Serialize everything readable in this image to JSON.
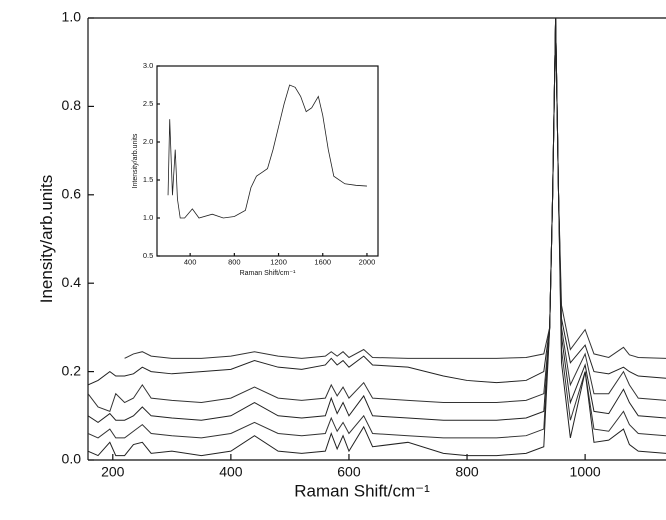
{
  "chart_data": [
    {
      "type": "line",
      "xlabel": "Raman Shift/cm⁻¹",
      "ylabel": "Inensity/arb.units",
      "xlim": [
        158,
        1137
      ],
      "ylim": [
        0,
        1.0
      ],
      "xticks": [
        200,
        400,
        600,
        800,
        1000
      ],
      "yticks": [
        {
          "value": 0,
          "label": "0.0"
        },
        0.2,
        0.4,
        0.6,
        0.8,
        {
          "value": 1,
          "label": "1.0"
        }
      ],
      "x": [
        158,
        175,
        195,
        205,
        220,
        235,
        250,
        265,
        300,
        350,
        400,
        440,
        480,
        520,
        560,
        570,
        580,
        590,
        600,
        625,
        640,
        700,
        760,
        800,
        850,
        900,
        930,
        940,
        945,
        950,
        955,
        960,
        975,
        1000,
        1015,
        1040,
        1065,
        1075,
        1090,
        1137
      ],
      "series": [
        {
          "color": "#333333",
          "values": [
            null,
            null,
            null,
            null,
            0.23,
            0.24,
            0.245,
            0.235,
            0.23,
            0.23,
            0.235,
            0.245,
            0.235,
            0.23,
            0.235,
            0.245,
            0.235,
            0.245,
            0.232,
            0.25,
            0.232,
            0.23,
            0.23,
            0.23,
            0.23,
            0.232,
            0.24,
            0.3,
            0.6,
            1.0,
            0.6,
            0.35,
            0.25,
            0.295,
            0.24,
            0.232,
            0.255,
            0.238,
            0.232,
            0.23
          ]
        },
        {
          "color": "#222222",
          "values": [
            0.17,
            0.18,
            0.2,
            0.19,
            0.19,
            0.195,
            0.21,
            0.2,
            0.195,
            0.2,
            0.205,
            0.225,
            0.21,
            0.205,
            0.215,
            0.23,
            0.215,
            0.225,
            0.21,
            0.235,
            0.215,
            0.21,
            0.19,
            0.18,
            0.175,
            0.18,
            0.2,
            0.3,
            0.6,
            1.0,
            0.6,
            0.32,
            0.22,
            0.26,
            0.2,
            0.195,
            0.21,
            0.2,
            0.19,
            0.185
          ]
        },
        {
          "color": "#333333",
          "values": [
            0.15,
            0.12,
            0.11,
            0.15,
            0.13,
            0.14,
            0.17,
            0.14,
            0.135,
            0.13,
            0.14,
            0.165,
            0.14,
            0.135,
            0.14,
            0.17,
            0.145,
            0.165,
            0.14,
            0.175,
            0.14,
            0.135,
            0.13,
            0.13,
            0.13,
            0.135,
            0.15,
            0.3,
            0.6,
            1.0,
            0.6,
            0.3,
            0.17,
            0.24,
            0.15,
            0.15,
            0.2,
            0.17,
            0.14,
            0.135
          ]
        },
        {
          "color": "#222222",
          "values": [
            0.1,
            0.085,
            0.105,
            0.09,
            0.09,
            0.1,
            0.12,
            0.1,
            0.095,
            0.09,
            0.1,
            0.13,
            0.1,
            0.095,
            0.1,
            0.14,
            0.105,
            0.13,
            0.1,
            0.145,
            0.1,
            0.095,
            0.09,
            0.09,
            0.09,
            0.095,
            0.11,
            0.3,
            0.6,
            1.0,
            0.6,
            0.28,
            0.13,
            0.215,
            0.11,
            0.105,
            0.16,
            0.13,
            0.1,
            0.095
          ]
        },
        {
          "color": "#333333",
          "values": [
            0.06,
            0.05,
            0.07,
            0.05,
            0.05,
            0.065,
            0.08,
            0.06,
            0.055,
            0.05,
            0.06,
            0.085,
            0.06,
            0.055,
            0.06,
            0.095,
            0.065,
            0.085,
            0.06,
            0.1,
            0.06,
            0.055,
            0.05,
            0.05,
            0.05,
            0.055,
            0.07,
            0.3,
            0.6,
            1.0,
            0.6,
            0.25,
            0.09,
            0.2,
            0.07,
            0.065,
            0.11,
            0.08,
            0.06,
            0.055
          ]
        },
        {
          "color": "#222222",
          "values": [
            0.02,
            0.01,
            0.04,
            0.01,
            0.01,
            0.035,
            0.04,
            0.015,
            0.02,
            0.01,
            0.02,
            0.055,
            0.02,
            0.015,
            0.02,
            0.06,
            0.025,
            0.055,
            0.02,
            0.075,
            0.03,
            0.04,
            0.015,
            0.01,
            0.01,
            0.015,
            0.03,
            0.3,
            0.6,
            1.0,
            0.6,
            0.22,
            0.05,
            0.2,
            0.04,
            0.045,
            0.07,
            0.035,
            0.02,
            0.015
          ]
        }
      ]
    },
    {
      "type": "line",
      "xlabel": "Raman Shift/cm⁻¹",
      "ylabel": "Intensity/arb.units",
      "xlim": [
        100,
        2100
      ],
      "ylim": [
        0.5,
        3.0
      ],
      "xticks": [
        400,
        800,
        1200,
        1600,
        2000
      ],
      "yticks": [
        0.5,
        {
          "value": 1,
          "label": "1.0"
        },
        1.5,
        {
          "value": 2,
          "label": "2.0"
        },
        2.5,
        {
          "value": 3,
          "label": "3.0"
        }
      ],
      "x": [
        200,
        215,
        240,
        265,
        285,
        310,
        350,
        420,
        480,
        600,
        700,
        800,
        900,
        950,
        1000,
        1050,
        1100,
        1150,
        1200,
        1250,
        1300,
        1350,
        1400,
        1450,
        1500,
        1560,
        1600,
        1650,
        1700,
        1800,
        1900,
        2000
      ],
      "series": [
        {
          "color": "#222222",
          "values": [
            1.3,
            2.3,
            1.3,
            1.9,
            1.25,
            1.0,
            1.0,
            1.12,
            1.0,
            1.05,
            1.0,
            1.02,
            1.1,
            1.4,
            1.55,
            1.6,
            1.65,
            1.9,
            2.2,
            2.5,
            2.75,
            2.72,
            2.6,
            2.4,
            2.45,
            2.6,
            2.35,
            1.9,
            1.55,
            1.45,
            1.43,
            1.42
          ]
        }
      ]
    }
  ]
}
